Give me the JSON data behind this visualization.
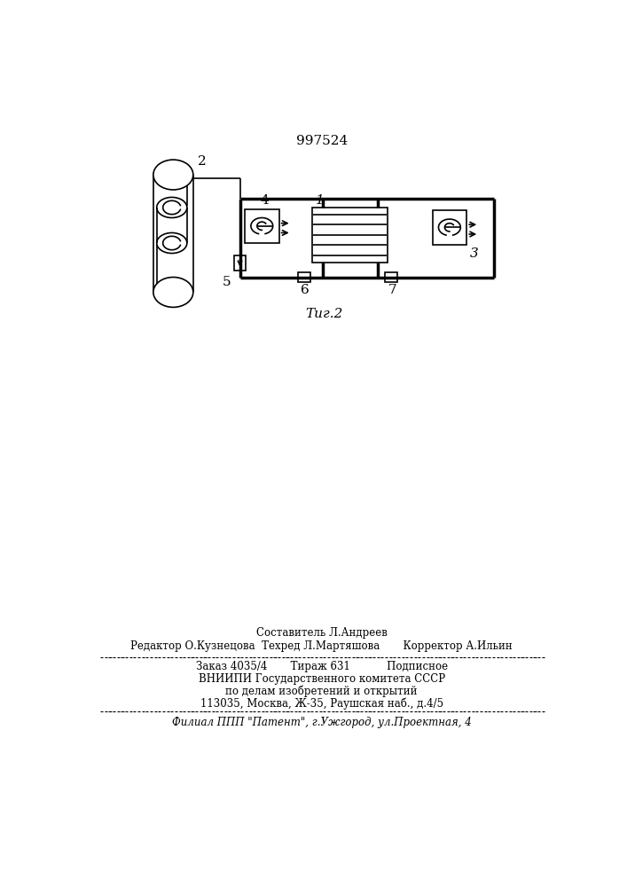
{
  "patent_number": "997524",
  "bg_color": "#ffffff",
  "line_color": "#000000",
  "fig_caption": "Τиг.2",
  "label_1": "1",
  "label_2": "2",
  "label_3": "3",
  "label_4": "4",
  "label_5": "5",
  "label_6": "6",
  "label_7": "7",
  "footer_line1": "Составитель Л.Андреев",
  "footer_line2": "Редактор О.Кузнецова  Техред Л.Мартяшова       Корректор А.Ильин",
  "footer_line3": "Заказ 4035/4       Тираж 631           Подписное",
  "footer_line4": "ВНИИПИ Государственного комитета СССР",
  "footer_line5": "по делам изобретений и открытий",
  "footer_line6": "113035, Москва, Ж-35, Раушская наб., д.4/5",
  "footer_line7": "Филиал ППП \"Патент\", г.Ужгород, ул.Проектная, 4"
}
